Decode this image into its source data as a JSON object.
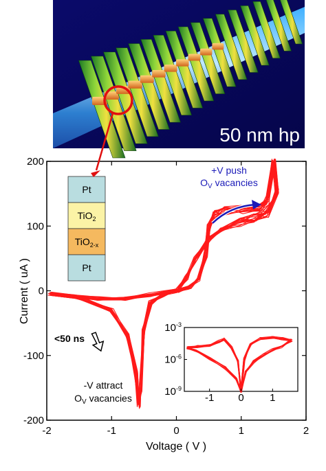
{
  "micrograph": {
    "scale_label": "50 nm hp"
  },
  "chart_data": {
    "type": "line",
    "xlabel": "Voltage ( V )",
    "ylabel": "Current  ( uA )",
    "xlim": [
      -2,
      2
    ],
    "ylim": [
      -200,
      200
    ],
    "x_ticks": [
      "-2",
      "-1",
      "0",
      "1",
      "2"
    ],
    "y_ticks": [
      "-200",
      "-100",
      "0",
      "100",
      "200"
    ],
    "series_color": "#ff1a1a",
    "cycles": 18,
    "loop": [
      [
        0,
        0
      ],
      [
        0.2,
        5
      ],
      [
        0.35,
        18
      ],
      [
        0.45,
        55
      ],
      [
        0.5,
        100
      ],
      [
        0.58,
        118
      ],
      [
        0.75,
        124
      ],
      [
        1.0,
        126
      ],
      [
        1.3,
        128
      ],
      [
        1.4,
        140
      ],
      [
        1.5,
        200
      ],
      [
        1.55,
        150
      ],
      [
        1.4,
        120
      ],
      [
        1.2,
        112
      ],
      [
        1.0,
        106
      ],
      [
        0.7,
        95
      ],
      [
        0.5,
        80
      ],
      [
        0.3,
        50
      ],
      [
        0.15,
        20
      ],
      [
        0,
        0
      ],
      [
        -0.2,
        -6
      ],
      [
        -0.4,
        -18
      ],
      [
        -0.5,
        -60
      ],
      [
        -0.55,
        -150
      ],
      [
        -0.58,
        -175
      ],
      [
        -0.62,
        -130
      ],
      [
        -0.75,
        -70
      ],
      [
        -1.0,
        -30
      ],
      [
        -1.5,
        -10
      ],
      [
        -1.95,
        -5
      ],
      [
        -1.6,
        -8
      ],
      [
        -1.2,
        -12
      ],
      [
        -0.8,
        -12
      ],
      [
        -0.4,
        -6
      ],
      [
        0,
        0
      ]
    ],
    "annotations": {
      "push_line1": "+V push",
      "push_line2_main": "O",
      "push_line2_sub": "V",
      "push_line2_rest": " vacancies",
      "attract_line1": "-V attract",
      "attract_line2_main": "O",
      "attract_line2_sub": "V",
      "attract_line2_rest": " vacancies",
      "pulse": "<50 ns"
    },
    "stack_layers": [
      {
        "main": "Pt",
        "sub": "",
        "color": "#b9dde0"
      },
      {
        "main": "TiO",
        "sub": "2",
        "color": "#fbf3a6"
      },
      {
        "main": "TiO",
        "sub": "2-x",
        "color": "#f5b95f"
      },
      {
        "main": "Pt",
        "sub": "",
        "color": "#b9dde0"
      }
    ],
    "inset": {
      "type": "line",
      "scale": "log",
      "xlim": [
        -1.8,
        1.8
      ],
      "x_ticks": [
        "-1",
        "0",
        "1"
      ],
      "y_ticks": [
        {
          "main": "10",
          "sup": "-3"
        },
        {
          "main": "10",
          "sup": "-6"
        },
        {
          "main": "10",
          "sup": "-9"
        }
      ],
      "ylim_exp": [
        -9,
        -3
      ]
    }
  }
}
